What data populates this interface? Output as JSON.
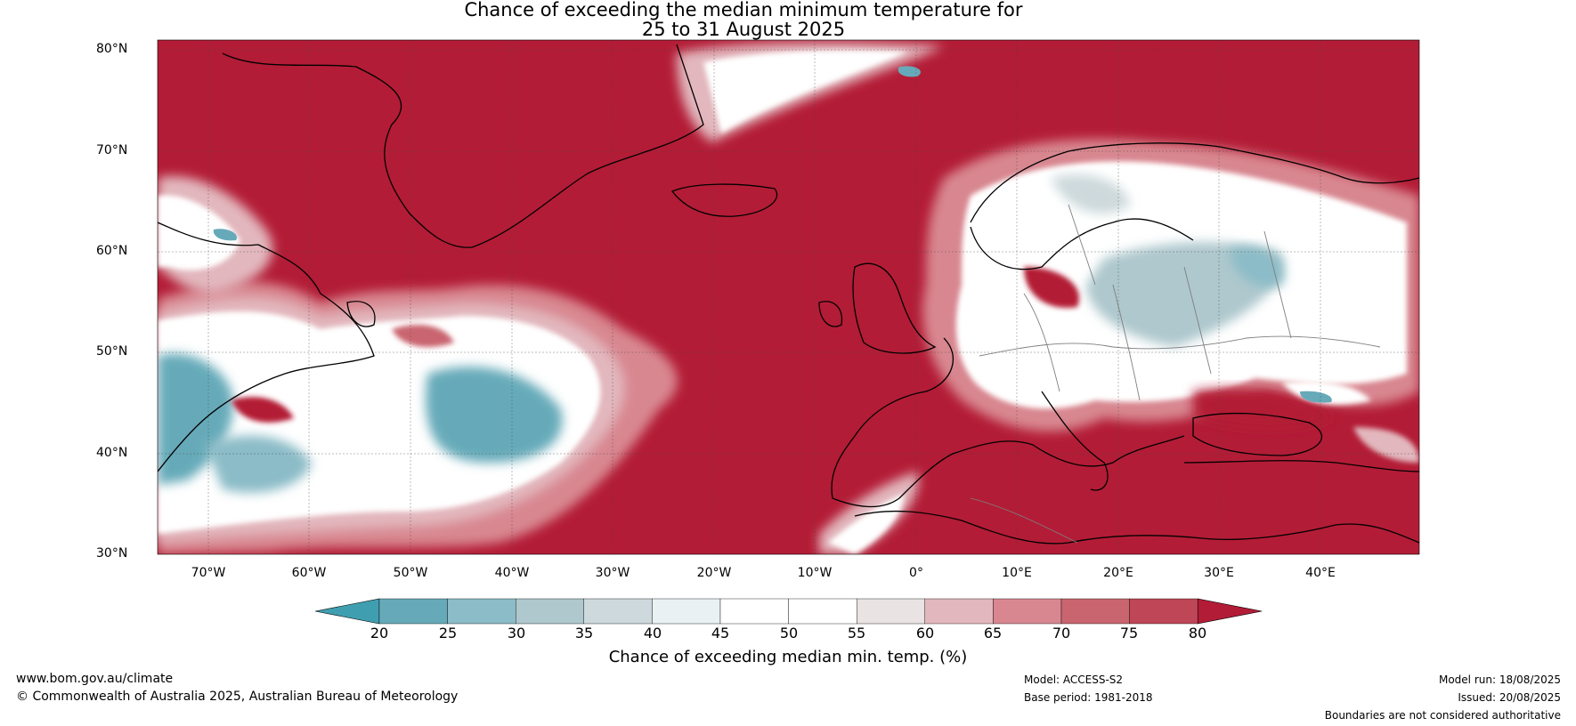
{
  "title": {
    "line1": "Chance of exceeding the median minimum temperature for",
    "line2": "25 to 31 August 2025"
  },
  "map_data": {
    "projection": "equirectangular",
    "lon_range": [
      -75,
      50
    ],
    "lat_range": [
      30,
      81
    ],
    "lat_labels": [
      "80°N",
      "70°N",
      "60°N",
      "50°N",
      "40°N",
      "30°N"
    ],
    "lon_labels": [
      "70°W",
      "60°W",
      "50°W",
      "40°W",
      "30°W",
      "20°W",
      "10°W",
      "0°",
      "10°E",
      "20°E",
      "30°E",
      "40°E"
    ],
    "dominant_color": "#b31c36",
    "land_outline_color": "#000000",
    "border_color": "#7f7f7f"
  },
  "colorbar": {
    "ticks": [
      "20",
      "25",
      "30",
      "35",
      "40",
      "45",
      "50",
      "55",
      "60",
      "65",
      "70",
      "75",
      "80"
    ],
    "colors": [
      "#3f9fb0",
      "#66aab9",
      "#8bbcc7",
      "#aec8cd",
      "#cdd9dc",
      "#e9f1f3",
      "#ffffff",
      "#ffffff",
      "#e9e3e4",
      "#e2b7bd",
      "#d88790",
      "#c9656f",
      "#be4657",
      "#b31c36"
    ],
    "label": "Chance of exceeding median min. temp. (%)"
  },
  "footer": {
    "url": "www.bom.gov.au/climate",
    "copyright": "© Commonwealth of Australia 2025, Australian Bureau of Meteorology",
    "model": "Model: ACCESS-S2",
    "base_period": "Base period: 1981-2018",
    "model_run": "Model run: 18/08/2025",
    "issued": "Issued: 20/08/2025",
    "disclaimer": "Boundaries are not considered authoritative"
  }
}
